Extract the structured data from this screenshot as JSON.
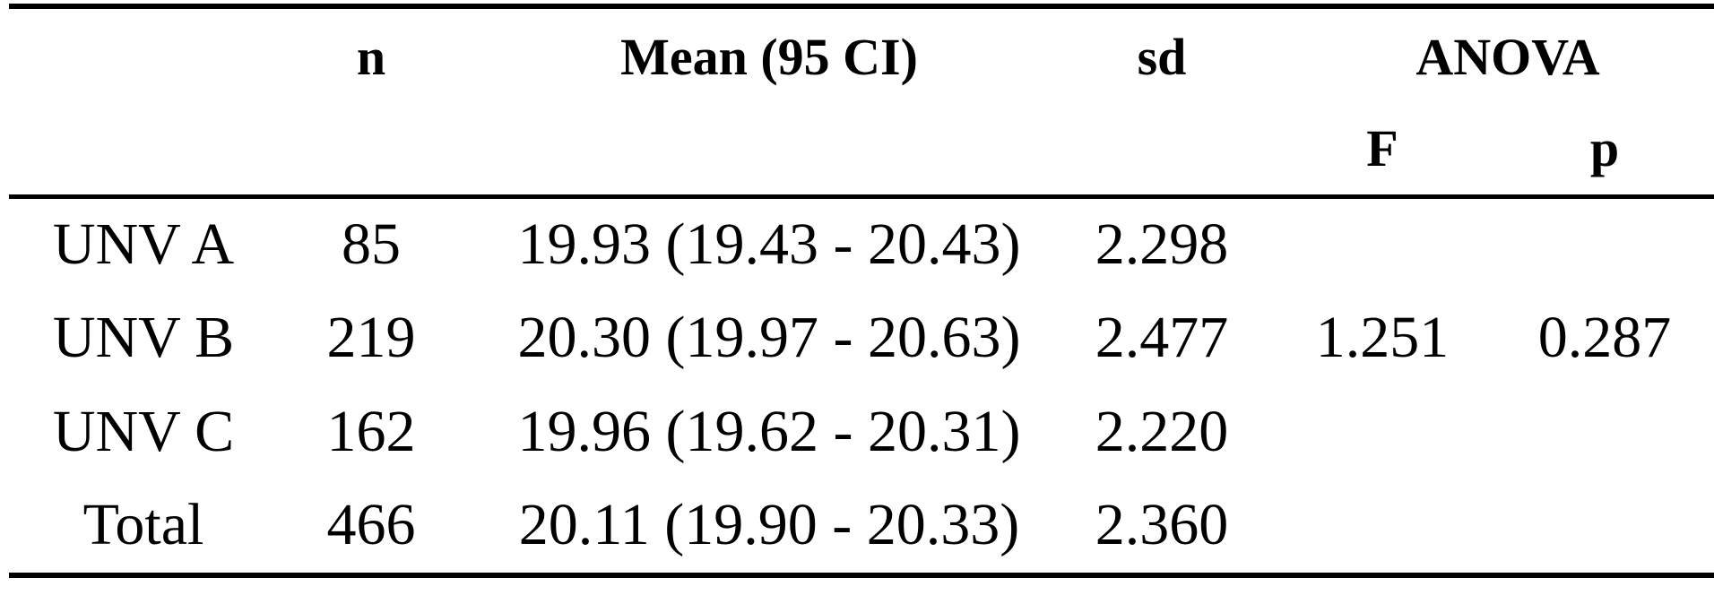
{
  "table": {
    "header": {
      "n": "n",
      "mean": "Mean (95 CI)",
      "sd": "sd",
      "anova": "ANOVA",
      "f": "F",
      "p": "p"
    },
    "rows": [
      {
        "group": "UNV A",
        "n": "85",
        "mean": "19.93 (19.43 - 20.43)",
        "sd": "2.298"
      },
      {
        "group": "UNV B",
        "n": "219",
        "mean": "20.30 (19.97 - 20.63)",
        "sd": "2.477"
      },
      {
        "group": "UNV C",
        "n": "162",
        "mean": "19.96 (19.62 - 20.31)",
        "sd": "2.220"
      },
      {
        "group": "Total",
        "n": "466",
        "mean": "20.11 (19.90 - 20.33)",
        "sd": "2.360"
      }
    ],
    "anova": {
      "f": "1.251",
      "p": "0.287"
    }
  }
}
